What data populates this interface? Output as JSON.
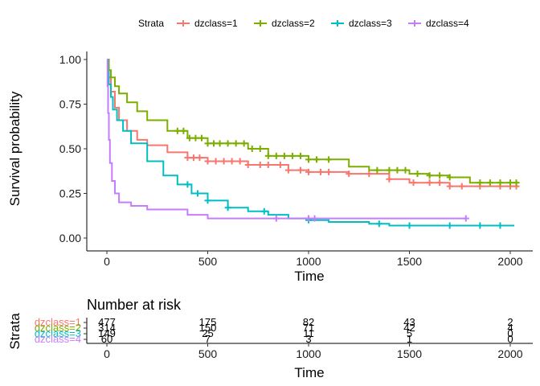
{
  "chart_data": [
    {
      "type": "line",
      "step": true,
      "xlabel": "Time",
      "ylabel": "Survival probability",
      "xlim": [
        0,
        2000
      ],
      "ylim": [
        0,
        1
      ],
      "x_ticks": [
        0,
        500,
        1000,
        1500,
        2000
      ],
      "y_ticks": [
        0.0,
        0.25,
        0.5,
        0.75,
        1.0
      ],
      "x_tick_labels": [
        "0",
        "500",
        "1000",
        "1500",
        "2000"
      ],
      "y_tick_labels": [
        "0.00",
        "0.25",
        "0.50",
        "0.75",
        "1.00"
      ],
      "grid": false,
      "legend": {
        "title": "Strata",
        "position": "top"
      },
      "series": [
        {
          "name": "dzclass=1",
          "color": "#F8766D",
          "x": [
            0,
            10,
            20,
            40,
            60,
            100,
            150,
            200,
            300,
            400,
            500,
            700,
            900,
            1000,
            1200,
            1400,
            1500,
            1700,
            1900,
            2000,
            2040
          ],
          "y": [
            1.0,
            0.9,
            0.82,
            0.73,
            0.66,
            0.6,
            0.55,
            0.52,
            0.48,
            0.45,
            0.43,
            0.41,
            0.38,
            0.37,
            0.36,
            0.33,
            0.31,
            0.29,
            0.29,
            0.29,
            0.29
          ],
          "censored_x": [
            400,
            430,
            460,
            500,
            540,
            580,
            620,
            660,
            700,
            760,
            800,
            860,
            900,
            960,
            1000,
            1060,
            1100,
            1200,
            1300,
            1400,
            1520,
            1600,
            1650,
            1700,
            1760,
            1850,
            1950,
            2000,
            2030
          ]
        },
        {
          "name": "dzclass=2",
          "color": "#7CAE00",
          "x": [
            0,
            10,
            20,
            40,
            60,
            100,
            150,
            200,
            300,
            400,
            500,
            700,
            800,
            1000,
            1200,
            1300,
            1500,
            1600,
            1700,
            1800,
            2000,
            2040
          ],
          "y": [
            1.0,
            0.94,
            0.9,
            0.85,
            0.81,
            0.76,
            0.71,
            0.66,
            0.6,
            0.56,
            0.53,
            0.5,
            0.46,
            0.44,
            0.4,
            0.38,
            0.36,
            0.35,
            0.34,
            0.31,
            0.31,
            0.31
          ],
          "censored_x": [
            350,
            380,
            410,
            440,
            470,
            500,
            530,
            560,
            600,
            640,
            680,
            720,
            760,
            800,
            840,
            880,
            920,
            960,
            1000,
            1040,
            1100,
            1340,
            1400,
            1440,
            1480,
            1540,
            1600,
            1650,
            1700,
            1850,
            1900,
            1950,
            2000,
            2030
          ]
        },
        {
          "name": "dzclass=3",
          "color": "#00BFC4",
          "x": [
            0,
            5,
            10,
            20,
            30,
            50,
            80,
            120,
            200,
            280,
            350,
            420,
            500,
            600,
            700,
            800,
            900,
            1000,
            1100,
            1200,
            1300,
            1400,
            1500,
            1600,
            1800,
            2020
          ],
          "y": [
            1.0,
            0.93,
            0.86,
            0.79,
            0.72,
            0.66,
            0.6,
            0.53,
            0.43,
            0.35,
            0.3,
            0.25,
            0.21,
            0.17,
            0.15,
            0.13,
            0.11,
            0.1,
            0.09,
            0.09,
            0.08,
            0.07,
            0.07,
            0.07,
            0.07,
            0.07
          ],
          "censored_x": [
            400,
            450,
            500,
            600,
            780,
            1000,
            1350,
            1500,
            1700,
            1850,
            1950
          ]
        },
        {
          "name": "dzclass=4",
          "color": "#C77CFF",
          "x": [
            0,
            3,
            6,
            10,
            15,
            25,
            40,
            60,
            120,
            200,
            300,
            400,
            500,
            600,
            800,
            1000,
            1200,
            1500,
            1780
          ],
          "y": [
            1.0,
            0.85,
            0.7,
            0.55,
            0.42,
            0.32,
            0.25,
            0.2,
            0.18,
            0.16,
            0.16,
            0.13,
            0.11,
            0.11,
            0.11,
            0.11,
            0.11,
            0.11,
            0.11
          ],
          "censored_x": [
            840,
            1000,
            1030,
            1780
          ]
        }
      ]
    },
    {
      "type": "table",
      "title": "Number at risk",
      "xlabel": "Time",
      "ylabel": "Strata",
      "xlim": [
        0,
        2000
      ],
      "x_ticks": [
        0,
        500,
        1000,
        1500,
        2000
      ],
      "x_tick_labels": [
        "0",
        "500",
        "1000",
        "1500",
        "2000"
      ],
      "rows": [
        {
          "label": "dzclass=1",
          "color": "#F8766D",
          "values": [
            "477",
            "175",
            "82",
            "43",
            "2"
          ]
        },
        {
          "label": "dzclass=2",
          "color": "#7CAE00",
          "values": [
            "314",
            "150",
            "71",
            "42",
            "4"
          ]
        },
        {
          "label": "dzclass=3",
          "color": "#00BFC4",
          "values": [
            "149",
            "25",
            "11",
            "5",
            "0"
          ]
        },
        {
          "label": "dzclass=4",
          "color": "#C77CFF",
          "values": [
            "60",
            "7",
            "3",
            "1",
            "0"
          ]
        }
      ]
    }
  ]
}
